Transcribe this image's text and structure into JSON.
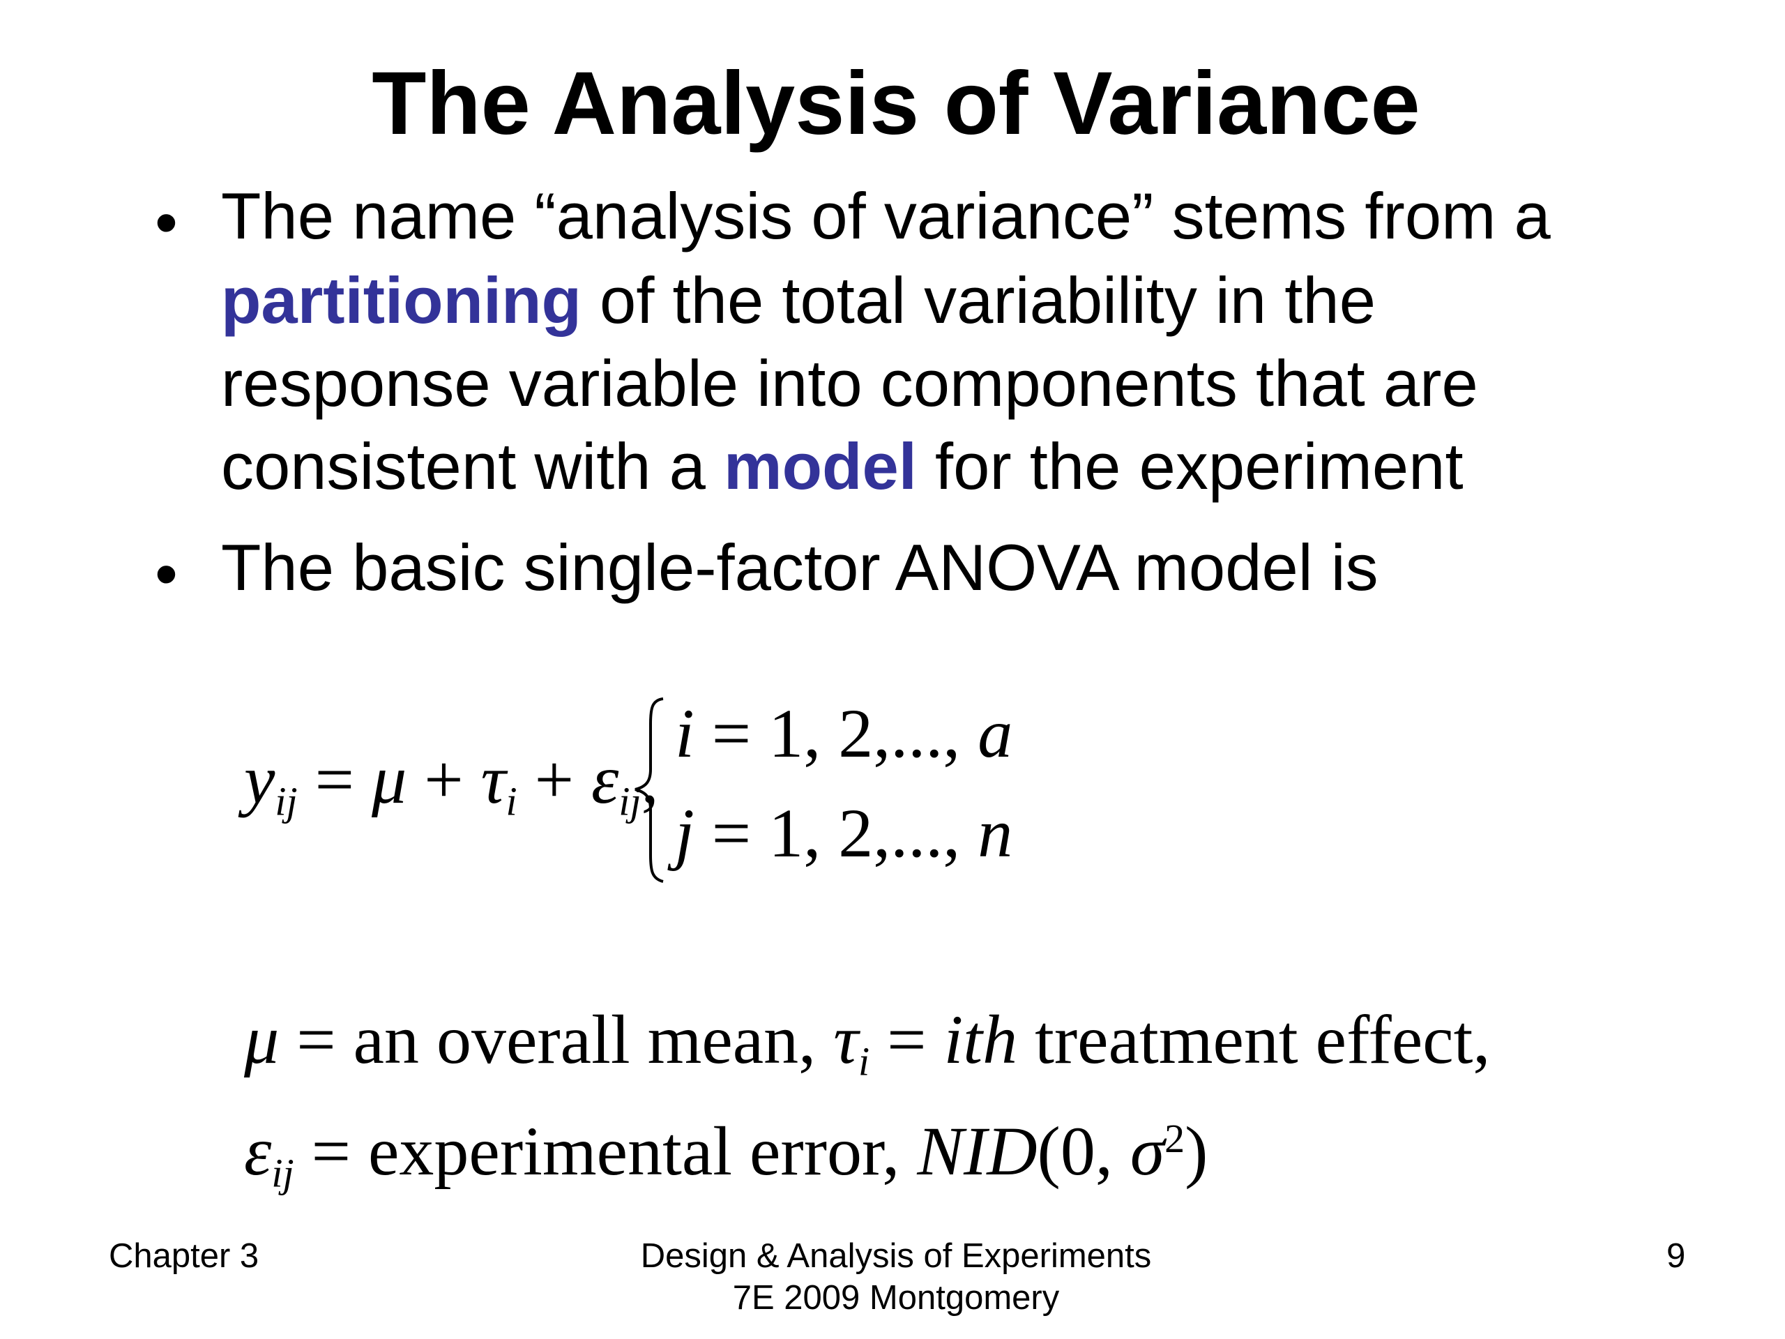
{
  "title": "The Analysis of Variance",
  "bullets": [
    {
      "lines": [
        {
          "parts": [
            "The name “analysis of variance” stems from a"
          ]
        },
        {
          "highlight": "partitioning",
          "rest": " of the total variability in the"
        },
        {
          "parts": [
            "response variable into components that are"
          ]
        },
        {
          "before": "consistent with a ",
          "highlight": "model",
          "after": " for the experiment"
        }
      ]
    },
    {
      "lines": [
        {
          "parts": [
            "The basic single-factor ANOVA model is"
          ]
        }
      ]
    }
  ],
  "equation": {
    "lhs": "y",
    "lhs_sub": "ij",
    "eq": " = ",
    "mu": "μ",
    "plus1": " + ",
    "tau": "τ",
    "tau_sub": "i",
    "plus2": " + ",
    "eps": "ε",
    "eps_sub": "ij",
    "comma": ",",
    "case1": {
      "var": "i",
      "rest": " = 1, 2,..., ",
      "end": "a"
    },
    "case2": {
      "var": "j",
      "rest": " = 1, 2,..., ",
      "end": "n"
    }
  },
  "definitions": {
    "mu_line": {
      "sym": "μ",
      "eq": " =  ",
      "text": "an overall mean,  ",
      "tau": "τ",
      "tau_sub": "i",
      "eq2": " = ",
      "ith": "ith",
      "text2": " treatment effect,"
    },
    "eps_line": {
      "sym": "ε",
      "sub": "ij",
      "eq": " =  ",
      "text": "experimental error, ",
      "nid": "NID",
      "open": "(0, ",
      "sigma": "σ",
      "sup": "2",
      "close": ")"
    }
  },
  "footer": {
    "left": "Chapter 3",
    "center_line1": "Design & Analysis of Experiments",
    "center_line2": "7E 2009 Montgomery",
    "page": "9"
  },
  "colors": {
    "highlight": "#333399",
    "text": "#000000",
    "background": "#ffffff"
  }
}
